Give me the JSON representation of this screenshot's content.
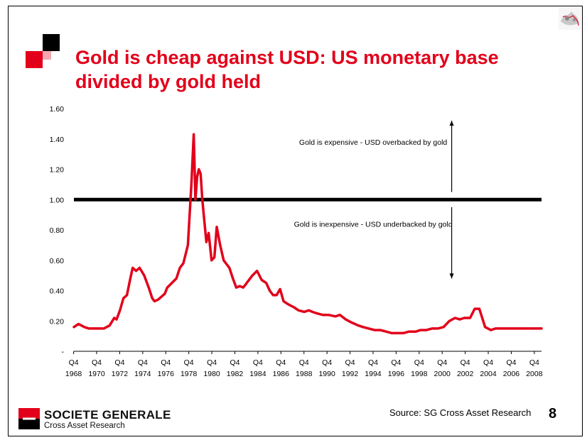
{
  "slide": {
    "title": "Gold is cheap against USD: US monetary base divided by gold held",
    "source": "Source: SG Cross Asset Research",
    "page_number": "8",
    "brand_color": "#e2001a",
    "logo": {
      "name": "SOCIETE GENERALE",
      "subtitle": "Cross Asset Research"
    }
  },
  "chart_data": {
    "type": "line",
    "title": "",
    "xlabel": "",
    "ylabel": "",
    "series_color": "#e2001a",
    "y_ticks": [
      "1.60",
      "1.40",
      "1.20",
      "1.00",
      "0.80",
      "0.60",
      "0.40",
      "0.20",
      "-"
    ],
    "y_tick_values": [
      1.6,
      1.4,
      1.2,
      1.0,
      0.8,
      0.6,
      0.4,
      0.2,
      0
    ],
    "ylim": [
      0,
      1.6
    ],
    "xlim": [
      1968.9,
      2009.5
    ],
    "x_tick_quarter": "Q4",
    "x_tick_years": [
      "1968",
      "1970",
      "1972",
      "1974",
      "1976",
      "1978",
      "1980",
      "1982",
      "1984",
      "1986",
      "1988",
      "1990",
      "1992",
      "1994",
      "1996",
      "1998",
      "2000",
      "2002",
      "2004",
      "2006",
      "2008"
    ],
    "reference_line": {
      "y": 1.0
    },
    "annotations": [
      {
        "text": "Gold is expensive - USD overbacked by gold",
        "x": 1995.5,
        "y": 1.38
      },
      {
        "text": "Gold is inexpensive - USD underbacked by gold",
        "x": 1995.5,
        "y": 0.84
      }
    ],
    "arrows": [
      {
        "x": 2001.7,
        "y_from": 1.05,
        "y_to": 1.52
      },
      {
        "x": 2001.7,
        "y_from": 0.95,
        "y_to": 0.48
      }
    ],
    "x": [
      1968.9,
      1969.3,
      1969.8,
      1970.2,
      1970.6,
      1971.0,
      1971.5,
      1972.0,
      1972.4,
      1972.6,
      1972.9,
      1973.2,
      1973.5,
      1973.8,
      1974.0,
      1974.3,
      1974.6,
      1975.0,
      1975.4,
      1975.7,
      1975.9,
      1976.2,
      1976.5,
      1976.8,
      1977.0,
      1977.4,
      1977.8,
      1978.1,
      1978.4,
      1978.8,
      1979.1,
      1979.3,
      1979.45,
      1979.6,
      1979.75,
      1979.9,
      1980.05,
      1980.2,
      1980.4,
      1980.6,
      1980.85,
      1981.1,
      1981.3,
      1981.6,
      1981.9,
      1982.1,
      1982.4,
      1982.7,
      1983.0,
      1983.3,
      1983.6,
      1983.8,
      1984.0,
      1984.4,
      1984.8,
      1985.2,
      1985.6,
      1985.9,
      1986.2,
      1986.5,
      1986.8,
      1987.1,
      1987.5,
      1988.0,
      1988.4,
      1988.9,
      1989.3,
      1989.6,
      1990.0,
      1990.5,
      1991.0,
      1991.6,
      1992.0,
      1992.5,
      1993.0,
      1993.6,
      1994.0,
      1994.5,
      1995.0,
      1995.5,
      1996.0,
      1996.5,
      1997.0,
      1997.5,
      1998.0,
      1998.6,
      1999.0,
      1999.5,
      2000.0,
      2000.5,
      2001.0,
      2001.5,
      2002.0,
      2002.4,
      2002.8,
      2003.3,
      2003.7,
      2004.1,
      2004.6,
      2005.1,
      2005.5,
      2005.9,
      2006.3,
      2006.7,
      2007.1,
      2007.5,
      2007.8,
      2008.1,
      2008.3,
      2008.6,
      2008.9,
      2009.2,
      2009.5
    ],
    "y": [
      0.16,
      0.18,
      0.16,
      0.15,
      0.15,
      0.15,
      0.15,
      0.17,
      0.22,
      0.21,
      0.27,
      0.35,
      0.37,
      0.48,
      0.55,
      0.53,
      0.55,
      0.5,
      0.42,
      0.35,
      0.33,
      0.34,
      0.36,
      0.38,
      0.42,
      0.45,
      0.48,
      0.55,
      0.58,
      0.7,
      1.1,
      1.43,
      1.0,
      1.15,
      1.2,
      1.17,
      1.0,
      0.88,
      0.72,
      0.78,
      0.6,
      0.62,
      0.82,
      0.7,
      0.6,
      0.58,
      0.55,
      0.48,
      0.42,
      0.43,
      0.42,
      0.44,
      0.46,
      0.5,
      0.53,
      0.47,
      0.45,
      0.4,
      0.37,
      0.37,
      0.41,
      0.33,
      0.31,
      0.29,
      0.27,
      0.26,
      0.27,
      0.26,
      0.25,
      0.24,
      0.24,
      0.23,
      0.24,
      0.21,
      0.19,
      0.17,
      0.16,
      0.15,
      0.14,
      0.14,
      0.13,
      0.12,
      0.12,
      0.12,
      0.13,
      0.13,
      0.14,
      0.14,
      0.15,
      0.15,
      0.16,
      0.2,
      0.22,
      0.21,
      0.22,
      0.22,
      0.28,
      0.28,
      0.16,
      0.14,
      0.15,
      0.15,
      0.15,
      0.15,
      0.15,
      0.15,
      0.15,
      0.15,
      0.15,
      0.15,
      0.15,
      0.15,
      0.15
    ]
  }
}
